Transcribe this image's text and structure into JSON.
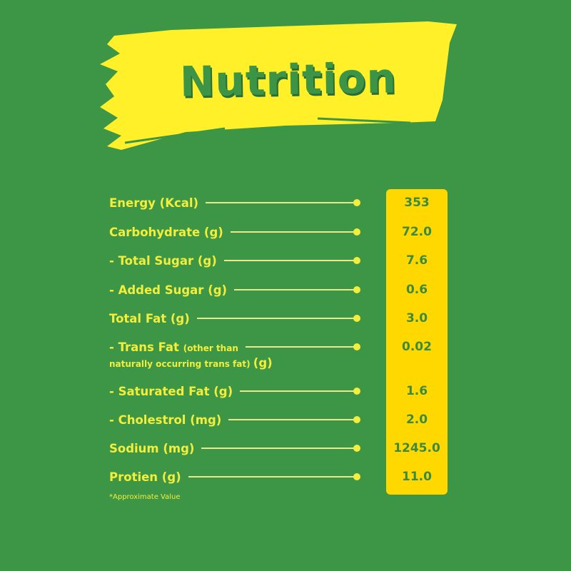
{
  "title": "Nutrition",
  "colors": {
    "background": "#3d9645",
    "banner": "#fff02a",
    "label_text": "#f3ee3c",
    "value_box": "#ffd800",
    "value_text": "#3c8a3f"
  },
  "rows": [
    {
      "label": "Energy (Kcal)",
      "value": "353"
    },
    {
      "label": "Carbohydrate (g)",
      "value": "72.0"
    },
    {
      "label": " - Total Sugar (g)",
      "value": "7.6"
    },
    {
      "label": " - Added Sugar (g)",
      "value": "0.6"
    },
    {
      "label": "Total Fat (g)",
      "value": "3.0"
    },
    {
      "label": " - Trans Fat",
      "label_note": "(other than",
      "label_line2": "naturally occurring trans fat)",
      "label_unit": "(g)",
      "value": "0.02"
    },
    {
      "label": " - Saturated Fat (g)",
      "value": "1.6"
    },
    {
      "label": " - Cholestrol (mg)",
      "value": "2.0"
    },
    {
      "label": "Sodium (mg)",
      "value": "1245.0"
    },
    {
      "label": "Protien (g)",
      "value": "11.0"
    }
  ],
  "footnote": "*Approximate Value"
}
